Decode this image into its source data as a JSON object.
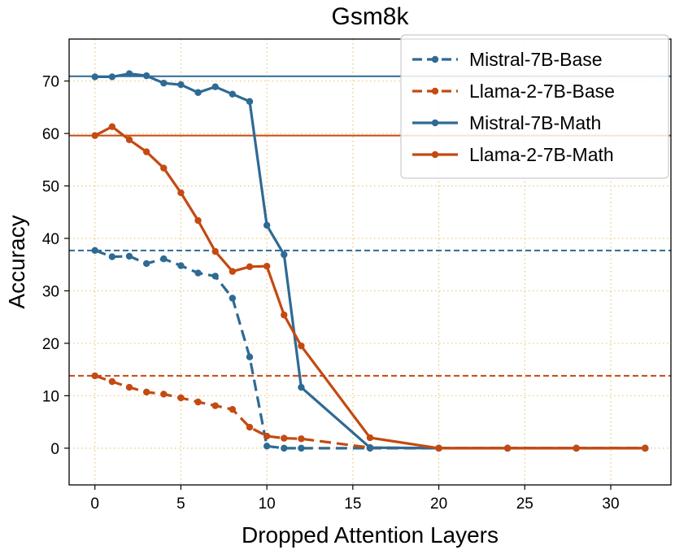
{
  "chart_data": {
    "type": "line",
    "title": "Gsm8k",
    "xlabel": "Dropped Attention Layers",
    "ylabel": "Accuracy",
    "xlim": [
      -1.5,
      33.5
    ],
    "ylim": [
      -7,
      78
    ],
    "xticks": [
      0,
      5,
      10,
      15,
      20,
      25,
      30
    ],
    "yticks": [
      0,
      10,
      20,
      30,
      40,
      50,
      60,
      70
    ],
    "grid": true,
    "legend_position": "top-right",
    "series": [
      {
        "name": "Mistral-7B-Base",
        "color": "#2e6a94",
        "style": "dashed",
        "baseline": 37.7,
        "x": [
          0,
          1,
          2,
          3,
          4,
          5,
          6,
          7,
          8,
          9,
          10,
          11,
          12,
          16,
          20,
          24,
          28,
          32
        ],
        "y": [
          37.7,
          36.5,
          36.6,
          35.2,
          36.1,
          34.8,
          33.4,
          32.8,
          28.6,
          17.4,
          0.4,
          0.0,
          0.0,
          0.0,
          0.0,
          0.0,
          0.0,
          0.0
        ]
      },
      {
        "name": "Llama-2-7B-Base",
        "color": "#c44a12",
        "style": "dashed",
        "baseline": 13.8,
        "x": [
          0,
          1,
          2,
          3,
          4,
          5,
          6,
          7,
          8,
          9,
          10,
          11,
          12,
          16,
          20,
          24,
          28,
          32
        ],
        "y": [
          13.8,
          12.7,
          11.6,
          10.7,
          10.3,
          9.6,
          8.8,
          8.1,
          7.4,
          4.0,
          2.3,
          1.9,
          1.8,
          0.1,
          0.0,
          0.0,
          0.0,
          0.0
        ]
      },
      {
        "name": "Mistral-7B-Math",
        "color": "#2e6a94",
        "style": "solid",
        "baseline": 70.9,
        "x": [
          0,
          1,
          2,
          3,
          4,
          5,
          6,
          7,
          8,
          9,
          10,
          11,
          12,
          16,
          20,
          24,
          28,
          32
        ],
        "y": [
          70.8,
          70.8,
          71.4,
          71.0,
          69.6,
          69.3,
          67.8,
          68.9,
          67.5,
          66.1,
          42.5,
          36.9,
          11.6,
          0.1,
          0.0,
          0.0,
          0.0,
          0.0
        ]
      },
      {
        "name": "Llama-2-7B-Math",
        "color": "#c44a12",
        "style": "solid",
        "baseline": 59.6,
        "x": [
          0,
          1,
          2,
          3,
          4,
          5,
          6,
          7,
          8,
          9,
          10,
          11,
          12,
          16,
          20,
          24,
          28,
          32
        ],
        "y": [
          59.6,
          61.3,
          58.8,
          56.5,
          53.4,
          48.7,
          43.4,
          37.5,
          33.7,
          34.6,
          34.7,
          25.4,
          19.5,
          2.0,
          0.0,
          0.0,
          0.0,
          0.0
        ]
      }
    ]
  }
}
